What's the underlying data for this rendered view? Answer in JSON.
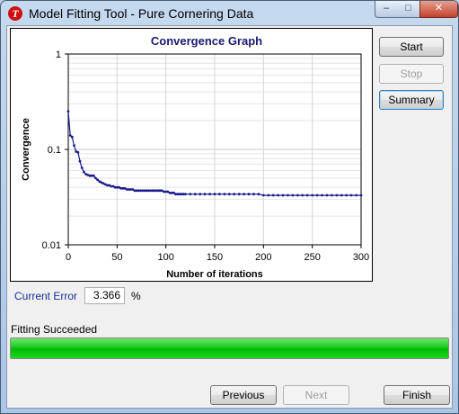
{
  "window": {
    "title": "Model Fitting Tool - Pure Cornering Data",
    "app_icon_letter": "T",
    "controls": {
      "minimize": "–",
      "maximize": "□",
      "close": "✕"
    }
  },
  "chart_data": {
    "type": "line",
    "title": "Convergence Graph",
    "xlabel": "Number of iterations",
    "ylabel": "Convergence",
    "y_scale": "log",
    "xlim": [
      0,
      300
    ],
    "ylim": [
      0.01,
      1
    ],
    "x_ticks": [
      "0",
      "50",
      "100",
      "150",
      "200",
      "250",
      "300"
    ],
    "y_ticks": [
      "1",
      "0.1",
      "0.01"
    ],
    "grid": true,
    "series": [
      {
        "color": "#1a1a8c",
        "x": [
          0,
          2,
          4,
          6,
          8,
          10,
          12,
          14,
          16,
          18,
          20,
          22,
          24,
          26,
          28,
          30,
          32,
          34,
          36,
          38,
          40,
          42,
          44,
          46,
          48,
          50,
          52,
          54,
          56,
          58,
          60,
          62,
          64,
          66,
          68,
          70,
          72,
          74,
          76,
          78,
          80,
          82,
          84,
          86,
          88,
          90,
          92,
          94,
          96,
          98,
          100,
          102,
          104,
          106,
          108,
          110,
          112,
          114,
          116,
          118,
          120,
          125,
          130,
          135,
          140,
          145,
          150,
          155,
          160,
          165,
          170,
          175,
          180,
          185,
          190,
          195,
          200,
          205,
          210,
          215,
          220,
          225,
          230,
          235,
          240,
          245,
          250,
          255,
          260,
          265,
          270,
          275,
          280,
          285,
          290,
          295,
          300
        ],
        "y": [
          0.25,
          0.14,
          0.135,
          0.11,
          0.095,
          0.093,
          0.075,
          0.064,
          0.058,
          0.055,
          0.054,
          0.053,
          0.053,
          0.053,
          0.05,
          0.048,
          0.046,
          0.045,
          0.044,
          0.043,
          0.042,
          0.042,
          0.041,
          0.041,
          0.04,
          0.04,
          0.04,
          0.039,
          0.039,
          0.039,
          0.038,
          0.038,
          0.038,
          0.038,
          0.037,
          0.037,
          0.037,
          0.037,
          0.037,
          0.037,
          0.037,
          0.037,
          0.037,
          0.037,
          0.037,
          0.037,
          0.037,
          0.037,
          0.037,
          0.036,
          0.036,
          0.036,
          0.035,
          0.035,
          0.035,
          0.034,
          0.034,
          0.034,
          0.034,
          0.034,
          0.034,
          0.034,
          0.034,
          0.034,
          0.034,
          0.034,
          0.034,
          0.034,
          0.034,
          0.034,
          0.034,
          0.034,
          0.034,
          0.034,
          0.034,
          0.034,
          0.033,
          0.033,
          0.033,
          0.033,
          0.033,
          0.033,
          0.033,
          0.033,
          0.033,
          0.033,
          0.033,
          0.033,
          0.033,
          0.033,
          0.033,
          0.033,
          0.033,
          0.033,
          0.033,
          0.033,
          0.033
        ]
      }
    ]
  },
  "buttons": {
    "start": "Start",
    "stop": "Stop",
    "summary": "Summary",
    "previous": "Previous",
    "next": "Next",
    "finish": "Finish"
  },
  "current_error": {
    "label": "Current Error",
    "value": "3.366",
    "unit": "%"
  },
  "status": {
    "text": "Fitting Succeeded",
    "progress": 1.0
  },
  "colors": {
    "label_blue": "#1a2f9c",
    "progress_green": "#05bb05",
    "series": "#1a1a8c"
  }
}
